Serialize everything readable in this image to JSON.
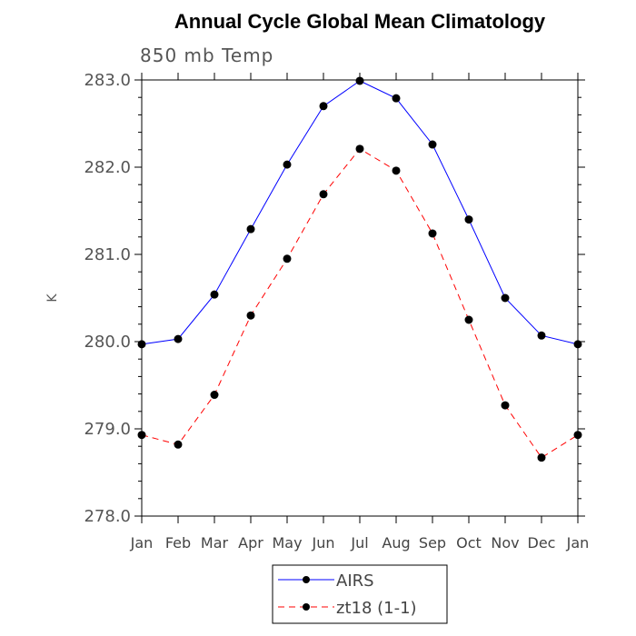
{
  "chart_data": {
    "type": "line",
    "title": "Annual Cycle Global Mean Climatology",
    "subtitle": "850 mb Temp",
    "xlabel": "",
    "ylabel": "K",
    "categories": [
      "Jan",
      "Feb",
      "Mar",
      "Apr",
      "May",
      "Jun",
      "Jul",
      "Aug",
      "Sep",
      "Oct",
      "Nov",
      "Dec",
      "Jan"
    ],
    "ylim": [
      278.0,
      283.0
    ],
    "yticks": [
      278.0,
      279.0,
      280.0,
      281.0,
      282.0,
      283.0
    ],
    "ytick_labels": [
      "278.0",
      "279.0",
      "280.0",
      "281.0",
      "282.0",
      "283.0"
    ],
    "grid": false,
    "legend_position": "bottom-center",
    "series": [
      {
        "name": "AIRS",
        "color": "#0000ff",
        "dash": "solid",
        "values": [
          279.97,
          280.03,
          280.54,
          281.29,
          282.03,
          282.7,
          282.99,
          282.79,
          282.26,
          281.4,
          280.5,
          280.07,
          279.97
        ]
      },
      {
        "name": "zt18 (1-1)",
        "color": "#ff0000",
        "dash": "dashed",
        "values": [
          278.93,
          278.82,
          279.39,
          280.3,
          280.95,
          281.69,
          282.21,
          281.96,
          281.24,
          280.25,
          279.27,
          278.67,
          278.93
        ]
      }
    ]
  }
}
